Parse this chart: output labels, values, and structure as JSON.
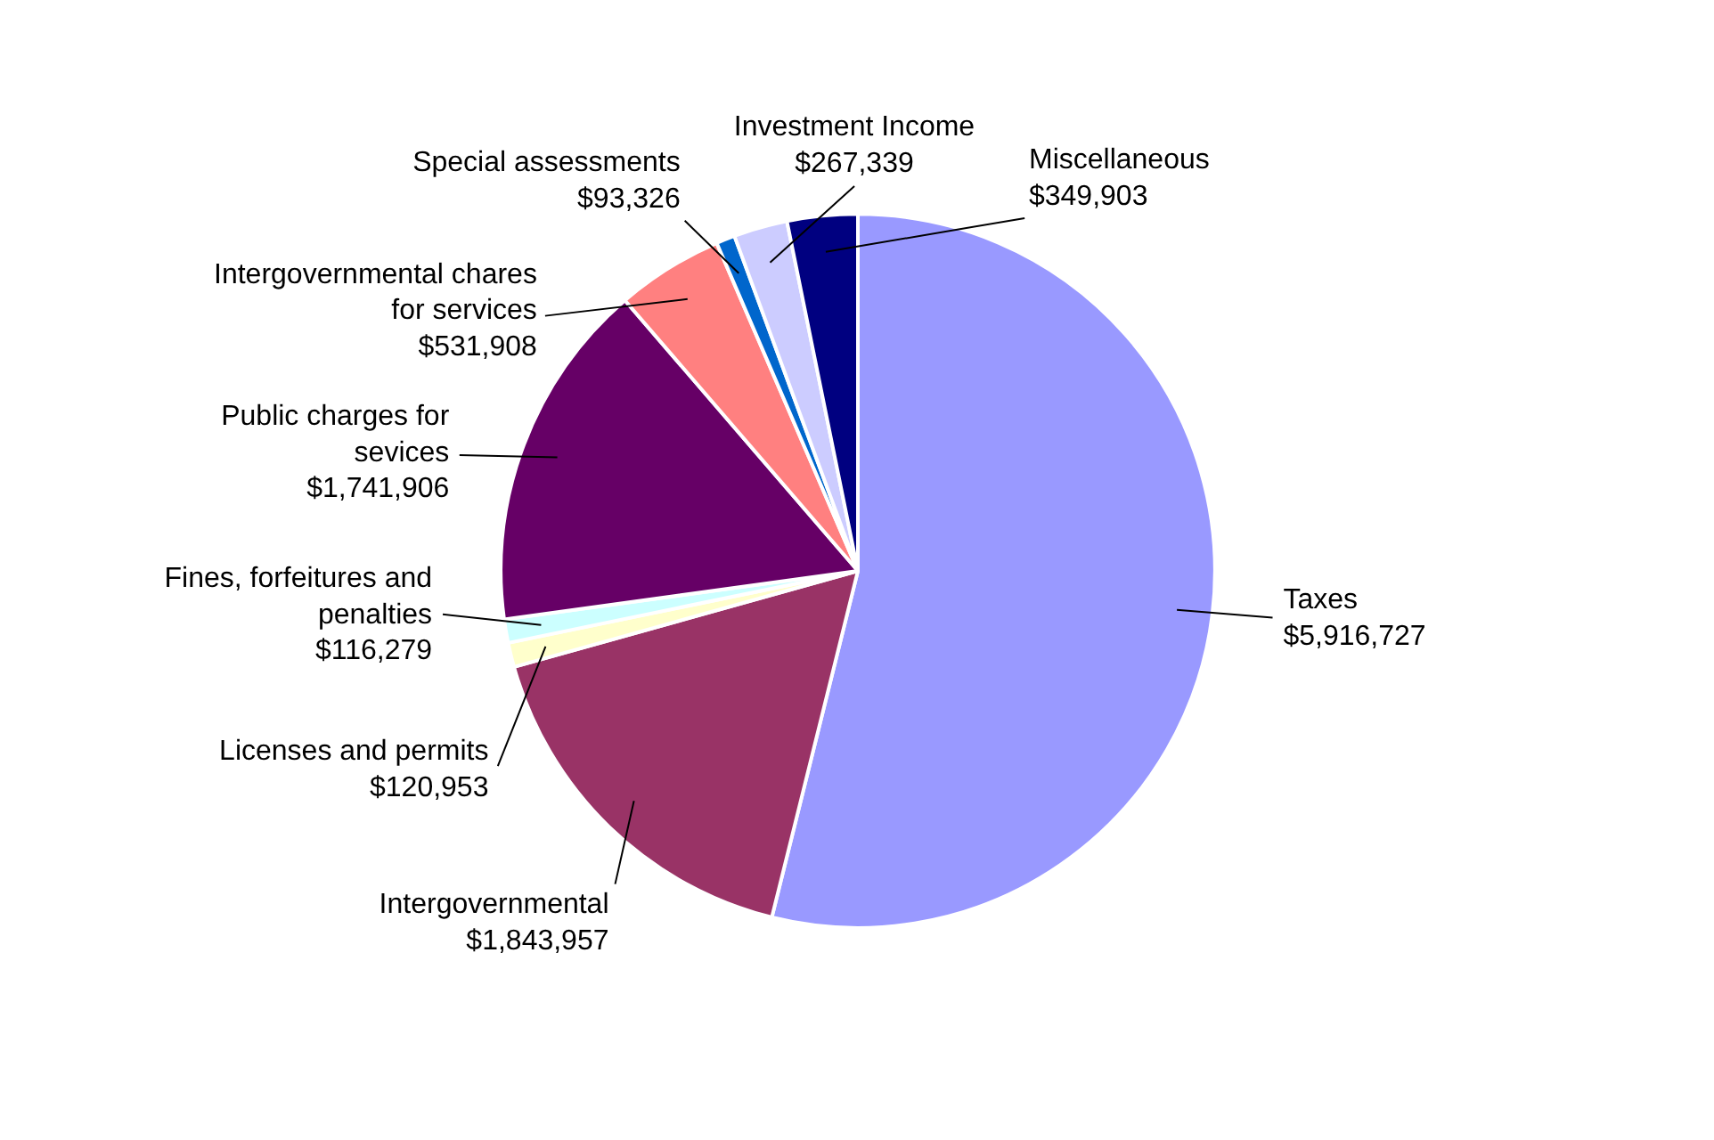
{
  "chart_data": {
    "type": "pie",
    "categories": [
      "Taxes",
      "Intergovernmental",
      "Licenses and permits",
      "Fines, forfeitures and penalties",
      "Public charges for sevices",
      "Intergovernmental chares for services",
      "Special assessments",
      "Investment Income",
      "Miscellaneous"
    ],
    "values": [
      5916727,
      1843957,
      120953,
      116279,
      1741906,
      531908,
      93326,
      267339,
      349903
    ],
    "value_labels": [
      "$5,916,727",
      "$1,843,957",
      "$120,953",
      "$116,279",
      "$1,741,906",
      "$531,908",
      "$93,326",
      "$267,339",
      "$349,903"
    ],
    "colors": [
      "#9999ff",
      "#993366",
      "#ffffcc",
      "#ccffff",
      "#660066",
      "#ff8080",
      "#0066cc",
      "#ccccff",
      "#000080"
    ],
    "legend": false
  }
}
